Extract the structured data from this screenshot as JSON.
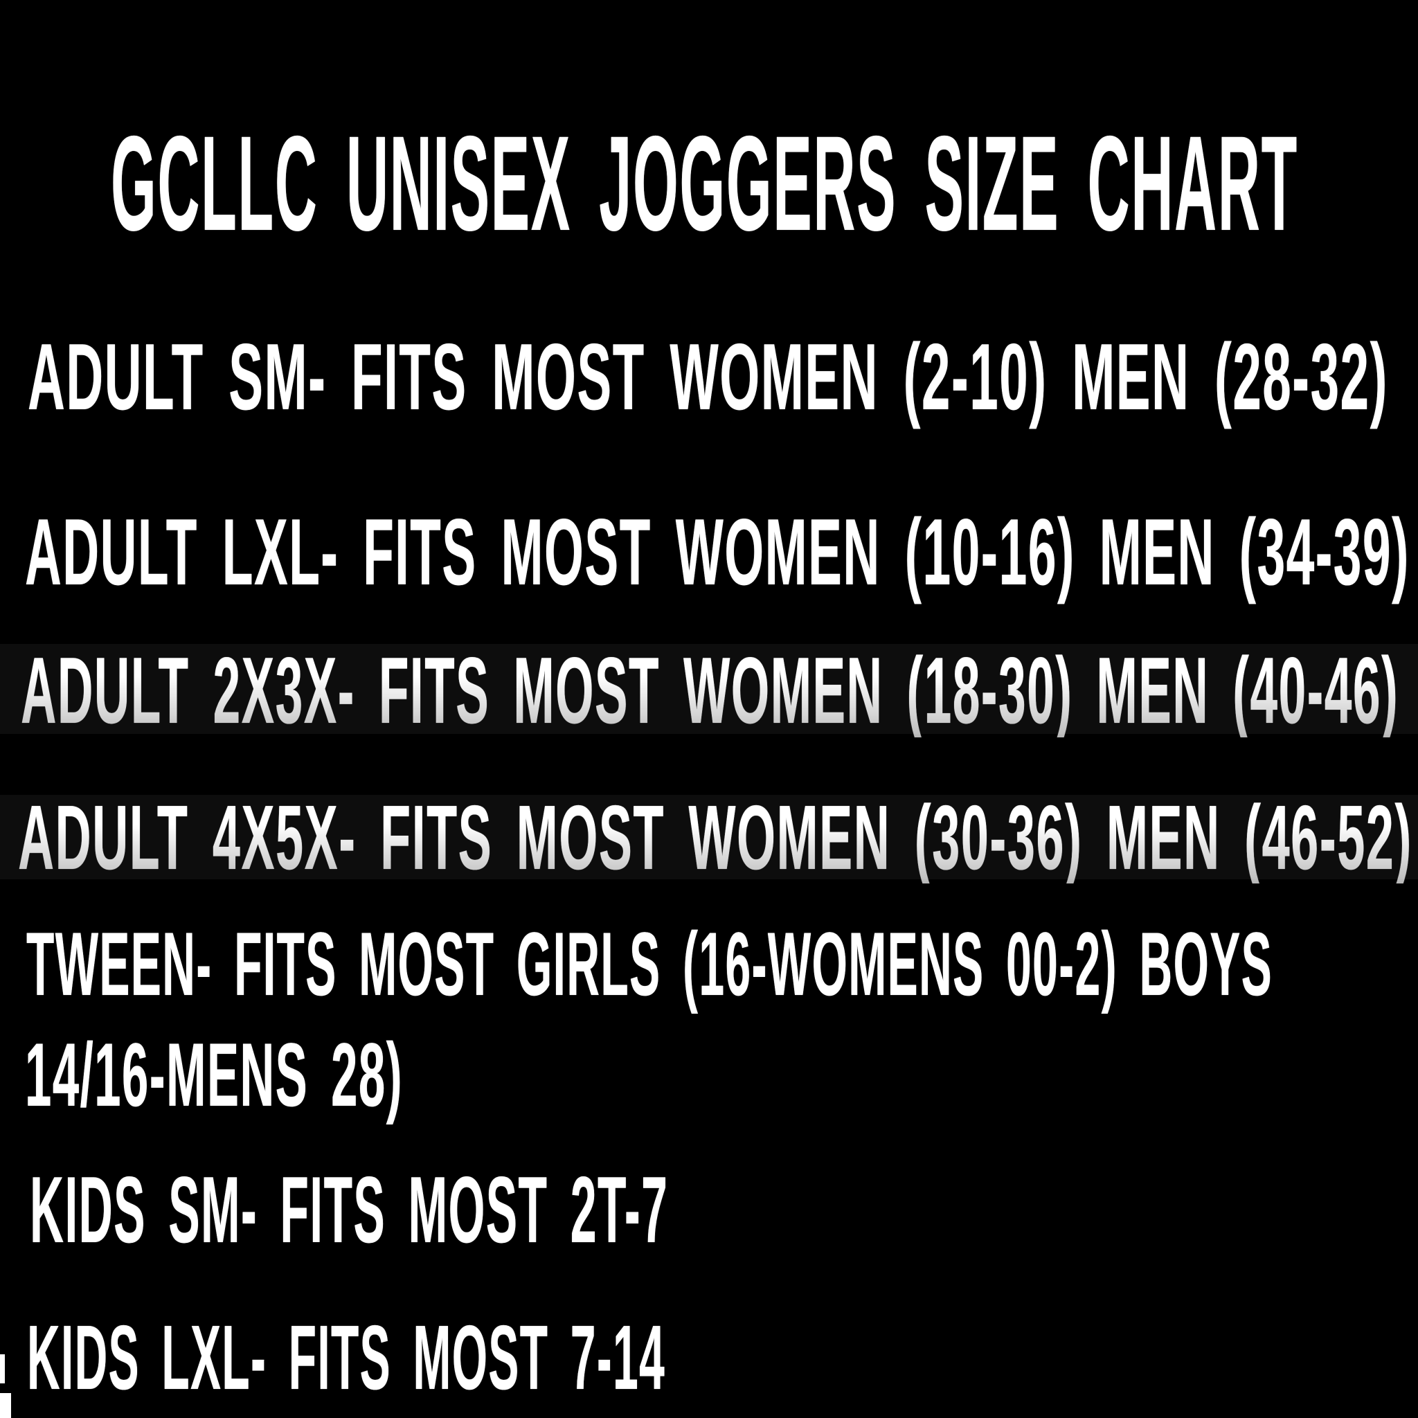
{
  "document": {
    "kind": "size-chart-graphic",
    "colors": {
      "background": "#000000",
      "text": "#ffffff"
    },
    "title": {
      "text": "GCLLC UNISEX JOGGERS SIZE CHART"
    },
    "size_chart": {
      "lines": [
        {
          "id": "adult-sm",
          "text": "ADULT SM- FITS MOST WOMEN (2-10) MEN (28-32)"
        },
        {
          "id": "adult-lxl",
          "text": "ADULT LXL- FITS MOST WOMEN (10-16) MEN (34-39)"
        },
        {
          "id": "adult-2x3x",
          "text": "ADULT 2X3X- FITS MOST WOMEN (18-30) MEN (40-46)"
        },
        {
          "id": "adult-4x5x",
          "text": "ADULT 4X5X- FITS MOST WOMEN (30-36) MEN (46-52)"
        },
        {
          "id": "tween-line-1",
          "text": "TWEEN- FITS MOST GIRLS (16-WOMENS 00-2) BOYS"
        },
        {
          "id": "tween-line-2",
          "text": "14/16-MENS 28)"
        },
        {
          "id": "kids-sm",
          "text": "KIDS SM- FITS MOST 2T-7"
        },
        {
          "id": "kids-lxl",
          "text": "KIDS LXL- FITS MOST 7-14"
        }
      ]
    }
  }
}
